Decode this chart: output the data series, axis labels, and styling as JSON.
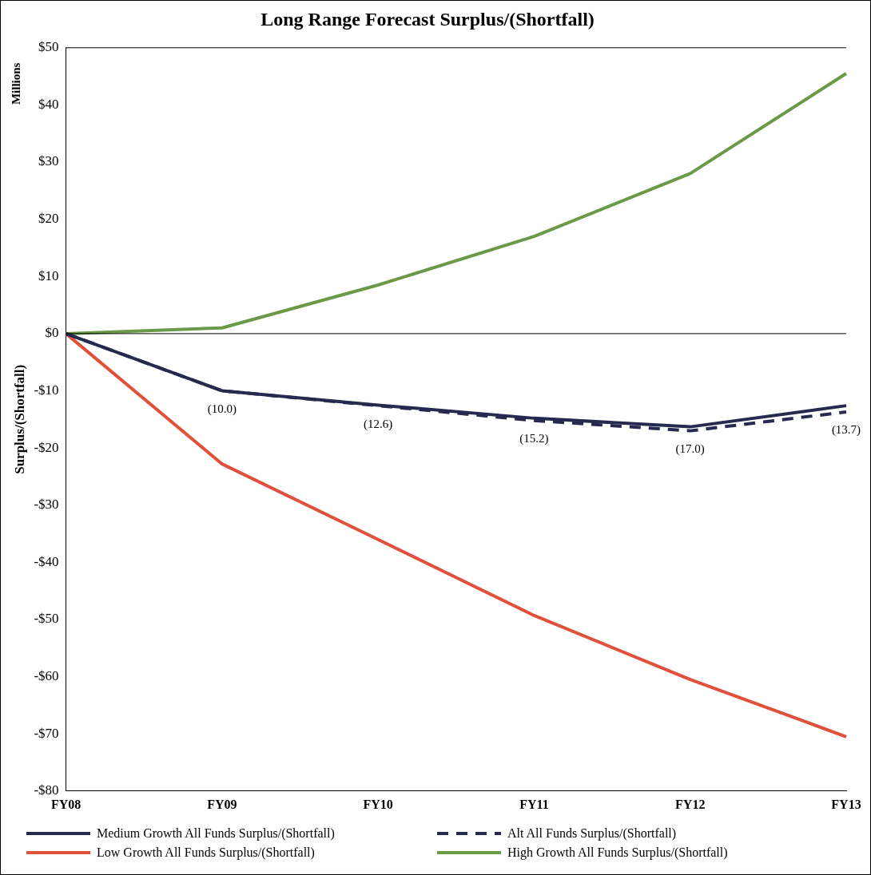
{
  "chart_data": {
    "type": "line",
    "title": "Long Range Forecast Surplus/(Shortfall)",
    "ylabel": "Surplus/(Shortfall)",
    "annotations": [
      "Millions"
    ],
    "categories": [
      "FY08",
      "FY09",
      "FY10",
      "FY11",
      "FY12",
      "FY13"
    ],
    "series": [
      {
        "name": "Medium Growth All Funds Surplus/(Shortfall)",
        "color": "#262a4f",
        "line_style": "solid",
        "values": [
          0,
          -10,
          -12.5,
          -14.8,
          -16.3,
          -12.6
        ]
      },
      {
        "name": "Alt All Funds Surplus/(Shortfall)",
        "color": "#262a4f",
        "line_style": "dashed",
        "values": [
          0,
          -10.0,
          -12.6,
          -15.2,
          -17.0,
          -13.7
        ],
        "value_labels": [
          null,
          "(10.0)",
          "(12.6)",
          "(15.2)",
          "(17.0)",
          "(13.7)"
        ]
      },
      {
        "name": "Low Growth All Funds Surplus/(Shortfall)",
        "color": "#e0503a",
        "line_style": "solid",
        "values": [
          0,
          -22.8,
          -36,
          -49.3,
          -60.5,
          -70.5
        ]
      },
      {
        "name": "High Growth All Funds Surplus/(Shortfall)",
        "color": "#6a9a48",
        "line_style": "solid",
        "values": [
          0,
          1,
          8.5,
          17,
          28,
          45.5
        ]
      }
    ],
    "ylim": [
      -80,
      50
    ],
    "yticks": [
      {
        "value": 50,
        "label": "$50"
      },
      {
        "value": 40,
        "label": "$40"
      },
      {
        "value": 30,
        "label": "$30"
      },
      {
        "value": 20,
        "label": "$20"
      },
      {
        "value": 10,
        "label": "$10"
      },
      {
        "value": 0,
        "label": "$0"
      },
      {
        "value": -10,
        "label": "-$10"
      },
      {
        "value": -20,
        "label": "-$20"
      },
      {
        "value": -30,
        "label": "-$30"
      },
      {
        "value": -40,
        "label": "-$40"
      },
      {
        "value": -50,
        "label": "-$50"
      },
      {
        "value": -60,
        "label": "-$60"
      },
      {
        "value": -70,
        "label": "-$70"
      },
      {
        "value": -80,
        "label": "-$80"
      }
    ],
    "ref_lines": [
      {
        "axis": "y",
        "value": 0,
        "label": null,
        "color": "#000000"
      }
    ],
    "grid": false,
    "legend": "bottom",
    "marker": "none"
  }
}
